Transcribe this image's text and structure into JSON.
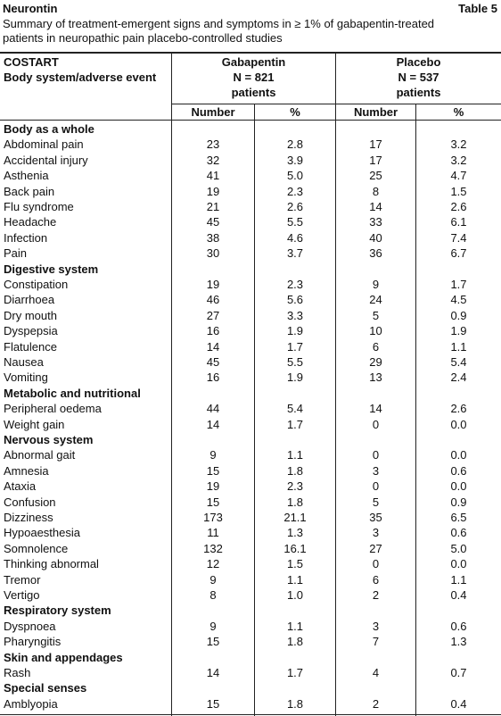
{
  "header": {
    "title": "Neurontin",
    "table_label": "Table 5",
    "caption_lines": [
      "Summary of treatment-emergent signs and symptoms in ≥ 1% of gabapentin-treated",
      "patients in neuropathic pain placebo-controlled studies"
    ]
  },
  "table": {
    "columns": {
      "first": [
        "COSTART",
        "Body system/adverse event"
      ],
      "gabapentin": [
        "Gabapentin",
        "N = 821",
        "patients"
      ],
      "placebo": [
        "Placebo",
        "N = 537",
        "patients"
      ],
      "subheaders": [
        "Number",
        "%",
        "Number",
        "%"
      ]
    },
    "groups": [
      {
        "name": "Body as a whole",
        "rows": [
          [
            "Abdominal pain",
            "23",
            "2.8",
            "17",
            "3.2"
          ],
          [
            "Accidental injury",
            "32",
            "3.9",
            "17",
            "3.2"
          ],
          [
            "Asthenia",
            "41",
            "5.0",
            "25",
            "4.7"
          ],
          [
            "Back pain",
            "19",
            "2.3",
            "8",
            "1.5"
          ],
          [
            "Flu syndrome",
            "21",
            "2.6",
            "14",
            "2.6"
          ],
          [
            "Headache",
            "45",
            "5.5",
            "33",
            "6.1"
          ],
          [
            "Infection",
            "38",
            "4.6",
            "40",
            "7.4"
          ],
          [
            "Pain",
            "30",
            "3.7",
            "36",
            "6.7"
          ]
        ]
      },
      {
        "name": "Digestive system",
        "rows": [
          [
            "Constipation",
            "19",
            "2.3",
            "9",
            "1.7"
          ],
          [
            "Diarrhoea",
            "46",
            "5.6",
            "24",
            "4.5"
          ],
          [
            "Dry mouth",
            "27",
            "3.3",
            "5",
            "0.9"
          ],
          [
            "Dyspepsia",
            "16",
            "1.9",
            "10",
            "1.9"
          ],
          [
            "Flatulence",
            "14",
            "1.7",
            "6",
            "1.1"
          ],
          [
            "Nausea",
            "45",
            "5.5",
            "29",
            "5.4"
          ],
          [
            "Vomiting",
            "16",
            "1.9",
            "13",
            "2.4"
          ]
        ]
      },
      {
        "name": "Metabolic and nutritional",
        "rows": [
          [
            "Peripheral oedema",
            "44",
            "5.4",
            "14",
            "2.6"
          ],
          [
            "Weight gain",
            "14",
            "1.7",
            "0",
            "0.0"
          ]
        ]
      },
      {
        "name": "Nervous system",
        "rows": [
          [
            "Abnormal gait",
            "9",
            "1.1",
            "0",
            "0.0"
          ],
          [
            "Amnesia",
            "15",
            "1.8",
            "3",
            "0.6"
          ],
          [
            "Ataxia",
            "19",
            "2.3",
            "0",
            "0.0"
          ],
          [
            "Confusion",
            "15",
            "1.8",
            "5",
            "0.9"
          ],
          [
            "Dizziness",
            "173",
            "21.1",
            "35",
            "6.5"
          ],
          [
            "Hypoaesthesia",
            "11",
            "1.3",
            "3",
            "0.6"
          ],
          [
            "Somnolence",
            "132",
            "16.1",
            "27",
            "5.0"
          ],
          [
            "Thinking abnormal",
            "12",
            "1.5",
            "0",
            "0.0"
          ],
          [
            "Tremor",
            "9",
            "1.1",
            "6",
            "1.1"
          ],
          [
            "Vertigo",
            "8",
            "1.0",
            "2",
            "0.4"
          ]
        ]
      },
      {
        "name": "Respiratory system",
        "rows": [
          [
            "Dyspnoea",
            "9",
            "1.1",
            "3",
            "0.6"
          ],
          [
            "Pharyngitis",
            "15",
            "1.8",
            "7",
            "1.3"
          ]
        ]
      },
      {
        "name": "Skin and appendages",
        "rows": [
          [
            "Rash",
            "14",
            "1.7",
            "4",
            "0.7"
          ]
        ]
      },
      {
        "name": "Special senses",
        "rows": [
          [
            "Amblyopia",
            "15",
            "1.8",
            "2",
            "0.4"
          ]
        ]
      }
    ]
  }
}
